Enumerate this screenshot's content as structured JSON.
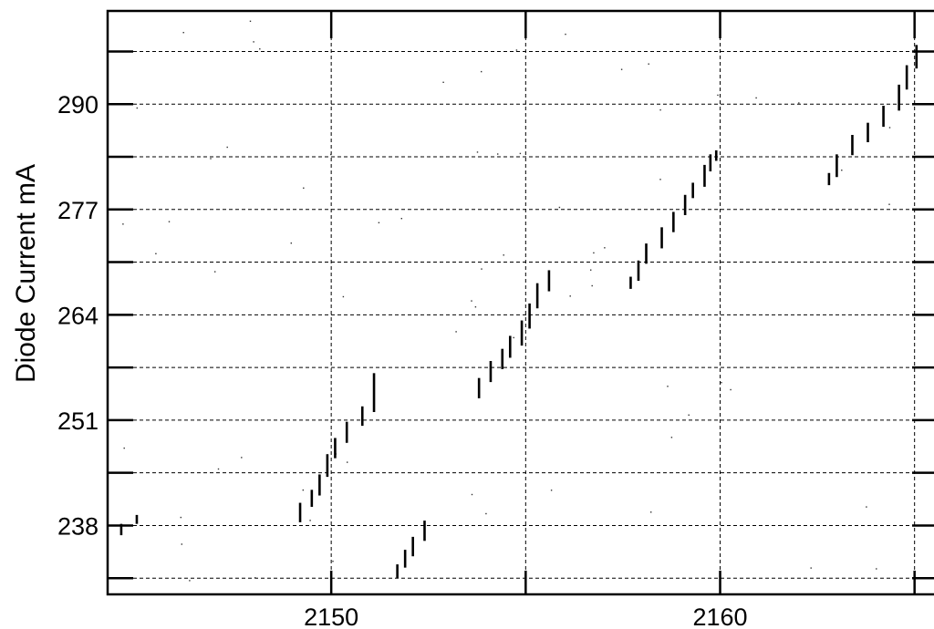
{
  "chart_data": {
    "type": "scatter",
    "title": "",
    "xlabel": "",
    "ylabel": "Diode Current mA",
    "xlim": [
      2144.25,
      2165.5
    ],
    "ylim": [
      229.5,
      301.5
    ],
    "x_ticks": [
      2150,
      2160
    ],
    "y_ticks": [
      238,
      251,
      264,
      277,
      290
    ],
    "grid": true,
    "gridlines_x": [
      2150,
      2155,
      2160,
      2165
    ],
    "gridlines_y": [
      231.5,
      238,
      244.5,
      251,
      257.5,
      264,
      270.5,
      277,
      283.5,
      290,
      296.5
    ],
    "series": [
      {
        "name": "",
        "style": "vertical-segments",
        "points": [
          {
            "x": 2144.6,
            "y_low": 236.8,
            "y_high": 238.2
          },
          {
            "x": 2145.0,
            "y_low": 238.2,
            "y_high": 239.3
          },
          {
            "x": 2149.2,
            "y_low": 238.4,
            "y_high": 240.8
          },
          {
            "x": 2149.5,
            "y_low": 240.3,
            "y_high": 242.4
          },
          {
            "x": 2149.7,
            "y_low": 241.7,
            "y_high": 244.3
          },
          {
            "x": 2149.9,
            "y_low": 244.0,
            "y_high": 246.8
          },
          {
            "x": 2150.1,
            "y_low": 246.3,
            "y_high": 248.8
          },
          {
            "x": 2150.4,
            "y_low": 248.2,
            "y_high": 250.8
          },
          {
            "x": 2150.8,
            "y_low": 250.3,
            "y_high": 252.7
          },
          {
            "x": 2151.1,
            "y_low": 252.0,
            "y_high": 256.8
          },
          {
            "x": 2151.7,
            "y_low": 231.5,
            "y_high": 233.2
          },
          {
            "x": 2151.9,
            "y_low": 232.8,
            "y_high": 235.0
          },
          {
            "x": 2152.1,
            "y_low": 234.2,
            "y_high": 236.6
          },
          {
            "x": 2152.4,
            "y_low": 236.1,
            "y_high": 238.6
          },
          {
            "x": 2153.8,
            "y_low": 253.7,
            "y_high": 256.2
          },
          {
            "x": 2154.1,
            "y_low": 255.7,
            "y_high": 258.3
          },
          {
            "x": 2154.4,
            "y_low": 257.3,
            "y_high": 259.8
          },
          {
            "x": 2154.6,
            "y_low": 258.7,
            "y_high": 261.4
          },
          {
            "x": 2154.9,
            "y_low": 260.2,
            "y_high": 263.3
          },
          {
            "x": 2155.1,
            "y_low": 262.3,
            "y_high": 265.4
          },
          {
            "x": 2155.3,
            "y_low": 264.8,
            "y_high": 267.9
          },
          {
            "x": 2155.6,
            "y_low": 266.9,
            "y_high": 269.5
          },
          {
            "x": 2157.7,
            "y_low": 267.2,
            "y_high": 268.7
          },
          {
            "x": 2157.9,
            "y_low": 268.2,
            "y_high": 270.7
          },
          {
            "x": 2158.1,
            "y_low": 270.3,
            "y_high": 272.8
          },
          {
            "x": 2158.5,
            "y_low": 272.2,
            "y_high": 274.8
          },
          {
            "x": 2158.8,
            "y_low": 274.2,
            "y_high": 276.7
          },
          {
            "x": 2159.1,
            "y_low": 276.3,
            "y_high": 278.8
          },
          {
            "x": 2159.3,
            "y_low": 278.4,
            "y_high": 280.3
          },
          {
            "x": 2159.6,
            "y_low": 279.8,
            "y_high": 282.5
          },
          {
            "x": 2159.75,
            "y_low": 281.7,
            "y_high": 283.8
          },
          {
            "x": 2159.9,
            "y_low": 283.0,
            "y_high": 284.3
          },
          {
            "x": 2162.8,
            "y_low": 280.0,
            "y_high": 281.5
          },
          {
            "x": 2163.0,
            "y_low": 281.0,
            "y_high": 283.8
          },
          {
            "x": 2163.4,
            "y_low": 283.7,
            "y_high": 286.2
          },
          {
            "x": 2163.8,
            "y_low": 285.3,
            "y_high": 287.7
          },
          {
            "x": 2164.2,
            "y_low": 287.2,
            "y_high": 289.8
          },
          {
            "x": 2164.6,
            "y_low": 289.2,
            "y_high": 292.4
          },
          {
            "x": 2164.8,
            "y_low": 291.8,
            "y_high": 294.8
          },
          {
            "x": 2165.05,
            "y_low": 294.4,
            "y_high": 297.3
          }
        ]
      }
    ]
  }
}
